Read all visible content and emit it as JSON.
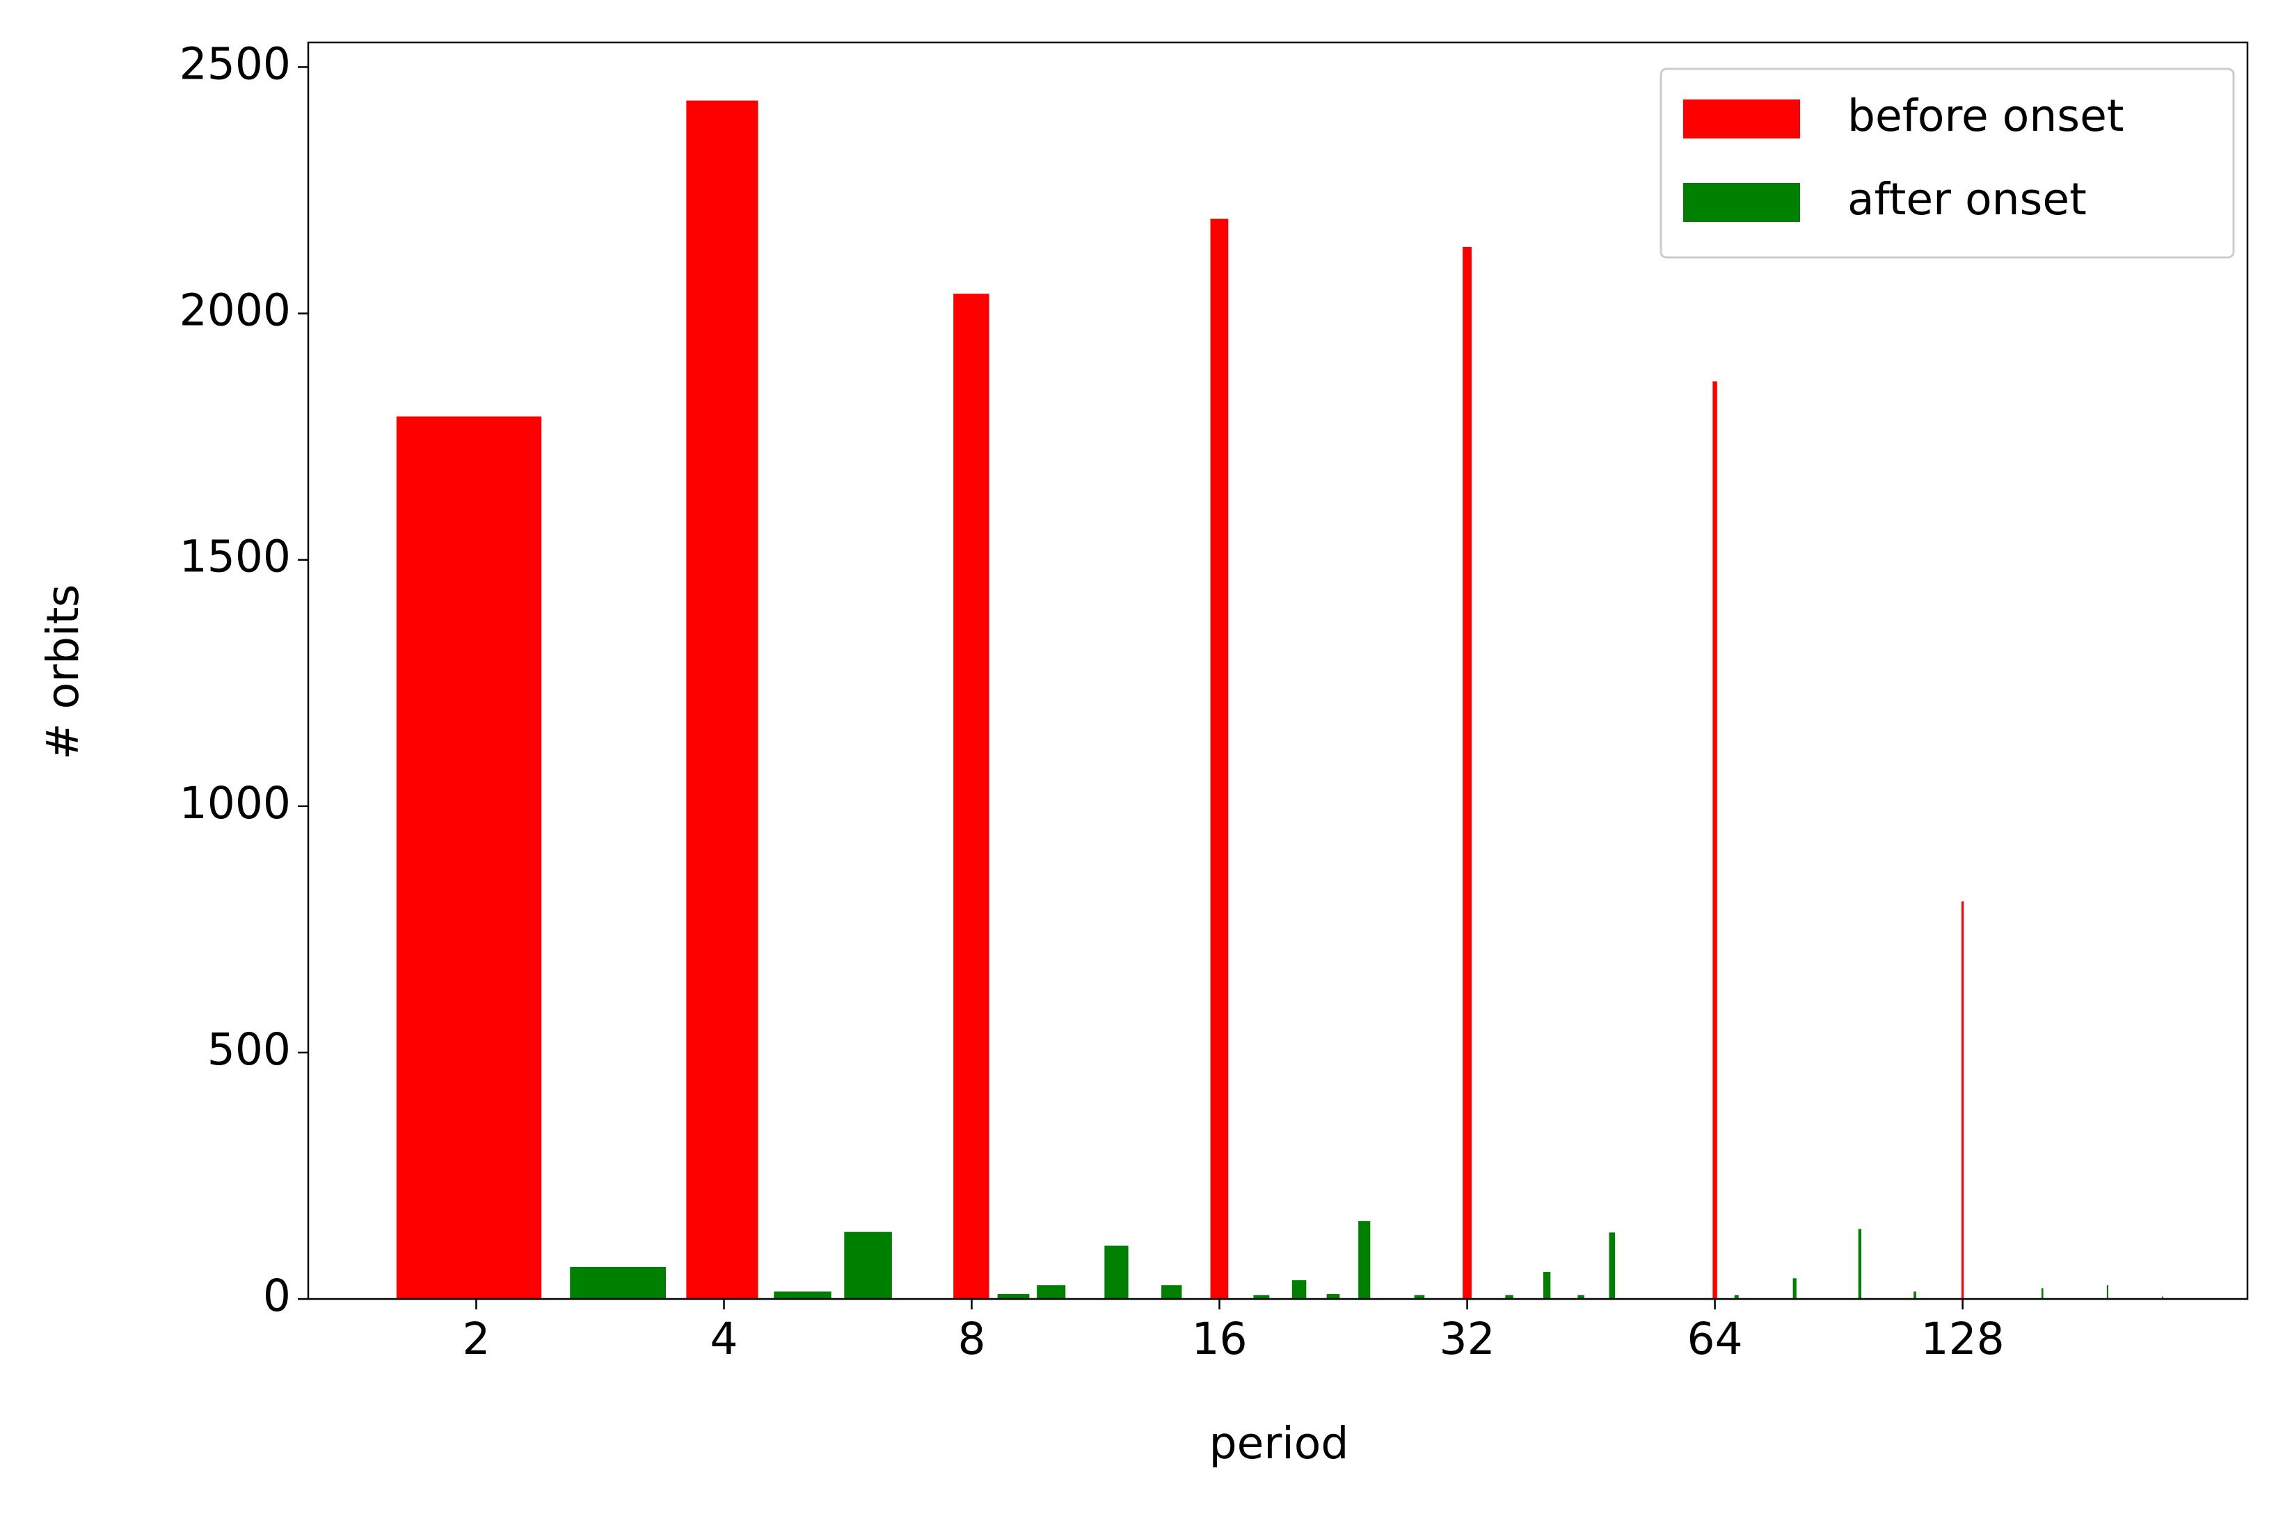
{
  "chart_data": {
    "type": "bar",
    "x_label": "period",
    "y_label": "# orbits",
    "xscale": "log",
    "log_base": 2,
    "xlim": [
      1.25,
      284
    ],
    "xticks": [
      2,
      4,
      8,
      16,
      32,
      64,
      128
    ],
    "ylim": [
      0,
      2550
    ],
    "yticks": [
      0,
      500,
      1000,
      1500,
      2000,
      2500
    ],
    "grid": false,
    "legend": "upper right",
    "series": [
      {
        "name": "before onset",
        "color": "#ff0000",
        "x": [
          2,
          4,
          8,
          16,
          32,
          64,
          128
        ],
        "values": [
          1791,
          2432,
          2040,
          2192,
          2135,
          1862,
          807
        ]
      },
      {
        "name": "after onset",
        "color": "#008000",
        "x": [
          3,
          5,
          6,
          9,
          10,
          12,
          14,
          18,
          20,
          22,
          24,
          28,
          36,
          40,
          44,
          48,
          68,
          80,
          96,
          112,
          160,
          192,
          224
        ],
        "values": [
          65,
          15,
          136,
          10,
          28,
          108,
          28,
          8,
          38,
          10,
          158,
          8,
          8,
          55,
          8,
          135,
          8,
          42,
          142,
          15,
          22,
          28,
          5
        ]
      }
    ]
  }
}
